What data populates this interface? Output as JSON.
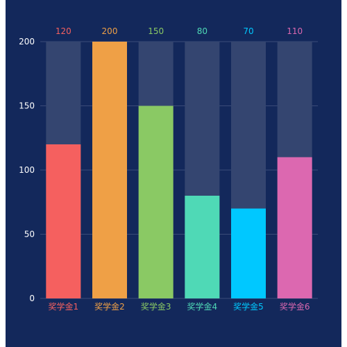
{
  "chart_data": {
    "type": "bar",
    "categories": [
      "奖学金1",
      "奖学金2",
      "奖学金3",
      "奖学金4",
      "奖学金5",
      "奖学金6"
    ],
    "values": [
      120,
      200,
      150,
      80,
      70,
      110
    ],
    "background_max": 200,
    "ylim": [
      0,
      200
    ],
    "yticks": [
      0,
      50,
      100,
      150,
      200
    ],
    "colors": [
      "#f5605f",
      "#efa046",
      "#8ac964",
      "#4fd9b6",
      "#00c8ff",
      "#dc68b0"
    ],
    "background_bar_color": "#344570",
    "gridline_color": "#3b4c78",
    "grid": true
  }
}
